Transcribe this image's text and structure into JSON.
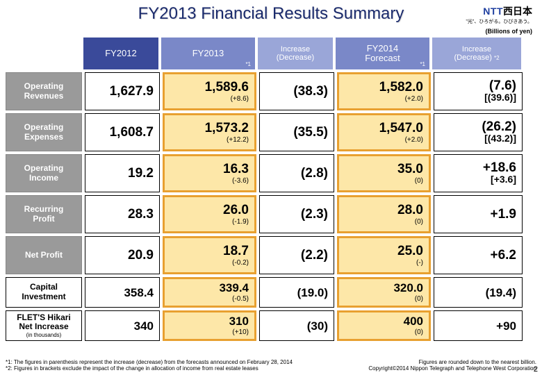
{
  "title": "FY2013 Financial Results Summary",
  "logo": {
    "en": "NTT",
    "jp": "西日本",
    "tagline": "\"光\"、ひろがる。ひびきあう。"
  },
  "unit_label": "(Billions of yen)",
  "headers": {
    "fy12": "FY2012",
    "fy13": "FY2013",
    "fy13_note": "*1",
    "inc1_line1": "Increase",
    "inc1_line2": "(Decrease)",
    "fy14_line1": "FY2014",
    "fy14_line2": "Forecast",
    "fy14_note": "*1",
    "inc2_line1": "Increase",
    "inc2_line2": "(Decrease)",
    "inc2_note": "*2"
  },
  "rows": [
    {
      "label1": "Operating",
      "label2": "Revenues",
      "style": "grey",
      "fy12": "1,627.9",
      "fy13": "1,589.6",
      "fy13_sub": "(+8.6)",
      "inc1": "(38.3)",
      "fy14": "1,582.0",
      "fy14_sub": "(+2.0)",
      "inc2": "(7.6)",
      "inc2_b": "[(39.6)]"
    },
    {
      "label1": "Operating",
      "label2": "Expenses",
      "style": "grey",
      "fy12": "1,608.7",
      "fy13": "1,573.2",
      "fy13_sub": "(+12.2)",
      "inc1": "(35.5)",
      "fy14": "1,547.0",
      "fy14_sub": "(+2.0)",
      "inc2": "(26.2)",
      "inc2_b": "[(43.2)]"
    },
    {
      "label1": "Operating",
      "label2": "Income",
      "style": "grey",
      "fy12": "19.2",
      "fy13": "16.3",
      "fy13_sub": "(-3.6)",
      "inc1": "(2.8)",
      "fy14": "35.0",
      "fy14_sub": "(0)",
      "inc2": "+18.6",
      "inc2_b": "[+3.6]"
    },
    {
      "label1": "Recurring",
      "label2": "Profit",
      "style": "grey",
      "fy12": "28.3",
      "fy13": "26.0",
      "fy13_sub": "(-1.9)",
      "inc1": "(2.3)",
      "fy14": "28.0",
      "fy14_sub": "(0)",
      "inc2": "+1.9",
      "inc2_b": ""
    },
    {
      "label1": "Net Profit",
      "label2": "",
      "style": "grey",
      "fy12": "20.9",
      "fy13": "18.7",
      "fy13_sub": "(-0.2)",
      "inc1": "(2.2)",
      "fy14": "25.0",
      "fy14_sub": "(-)",
      "inc2": "+6.2",
      "inc2_b": ""
    },
    {
      "label1": "Capital",
      "label2": "Investment",
      "style": "white",
      "fy12": "358.4",
      "fy13": "339.4",
      "fy13_sub": "(-0.5)",
      "inc1": "(19.0)",
      "fy14": "320.0",
      "fy14_sub": "(0)",
      "inc2": "(19.4)",
      "inc2_b": ""
    },
    {
      "label1": "FLET'S Hikari",
      "label2": "Net Increase",
      "label_sub": "(in thousands)",
      "style": "white",
      "fy12": "340",
      "fy13": "310",
      "fy13_sub": "(+10)",
      "inc1": "(30)",
      "fy14": "400",
      "fy14_sub": "(0)",
      "inc2": "+90",
      "inc2_b": ""
    }
  ],
  "footnotes": {
    "f1": "*1: The figures in parenthesis represent the increase (decrease) from the forecasts announced on February 28, 2014",
    "f2": "*2: Figures in brackets exclude the impact of the change in allocation of income from real estate leases",
    "r1": "Figures are rounded down to the nearest billion.",
    "r2": "Copyright©2014 Nippon Telegraph and Telephone West Corporation"
  },
  "page_number": "2",
  "colors": {
    "title": "#1a2a6c",
    "hdr_dark": "#3a4a9a",
    "hdr_med": "#7a88c8",
    "hdr_light": "#9aa6d8",
    "row_grey": "#9a9a9a",
    "gold_bg": "#fde7a8",
    "gold_border": "#e8a030"
  }
}
